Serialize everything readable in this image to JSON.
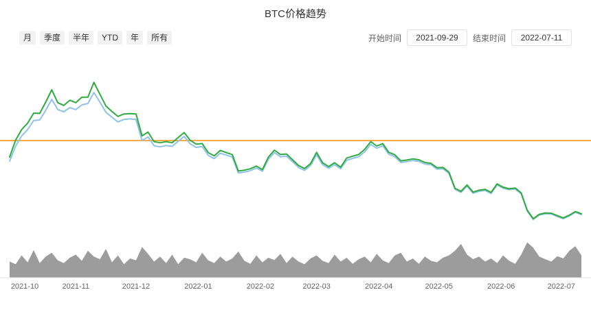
{
  "header": {
    "title": "BTC价格趋势"
  },
  "filters": {
    "items": [
      "月",
      "季度",
      "半年",
      "YTD",
      "年",
      "所有"
    ]
  },
  "date_controls": {
    "start_label": "开始时间",
    "start_value": "2021-09-29",
    "end_label": "结束时间",
    "end_value": "2022-07-11"
  },
  "chart_data": {
    "type": "line",
    "title": "BTC价格趋势",
    "xlabel": "",
    "ylabel": "",
    "grid": false,
    "legend": "none",
    "price_axis_range": [
      15000,
      72000
    ],
    "total_days": 285,
    "dates": [
      "2021-09-29",
      "2021-10-02",
      "2021-10-05",
      "2021-10-08",
      "2021-10-11",
      "2021-10-14",
      "2021-10-17",
      "2021-10-20",
      "2021-10-23",
      "2021-10-26",
      "2021-10-29",
      "2021-11-01",
      "2021-11-04",
      "2021-11-07",
      "2021-11-10",
      "2021-11-13",
      "2021-11-16",
      "2021-11-19",
      "2021-11-22",
      "2021-11-25",
      "2021-11-28",
      "2021-12-01",
      "2021-12-04",
      "2021-12-07",
      "2021-12-10",
      "2021-12-13",
      "2021-12-16",
      "2021-12-19",
      "2021-12-22",
      "2021-12-25",
      "2021-12-28",
      "2021-12-31",
      "2022-01-03",
      "2022-01-06",
      "2022-01-09",
      "2022-01-12",
      "2022-01-15",
      "2022-01-18",
      "2022-01-21",
      "2022-01-24",
      "2022-01-27",
      "2022-01-30",
      "2022-02-02",
      "2022-02-05",
      "2022-02-08",
      "2022-02-11",
      "2022-02-14",
      "2022-02-17",
      "2022-02-20",
      "2022-02-23",
      "2022-02-26",
      "2022-03-01",
      "2022-03-04",
      "2022-03-07",
      "2022-03-10",
      "2022-03-13",
      "2022-03-16",
      "2022-03-19",
      "2022-03-22",
      "2022-03-25",
      "2022-03-28",
      "2022-03-31",
      "2022-04-03",
      "2022-04-06",
      "2022-04-09",
      "2022-04-12",
      "2022-04-15",
      "2022-04-18",
      "2022-04-21",
      "2022-04-24",
      "2022-04-27",
      "2022-04-30",
      "2022-05-03",
      "2022-05-06",
      "2022-05-09",
      "2022-05-12",
      "2022-05-15",
      "2022-05-18",
      "2022-05-21",
      "2022-05-24",
      "2022-05-27",
      "2022-05-30",
      "2022-06-02",
      "2022-06-05",
      "2022-06-08",
      "2022-06-11",
      "2022-06-14",
      "2022-06-17",
      "2022-06-20",
      "2022-06-23",
      "2022-06-26",
      "2022-06-29",
      "2022-07-02",
      "2022-07-05",
      "2022-07-08",
      "2022-07-11"
    ],
    "series": [
      {
        "key": "green-line",
        "color": "#2eaa3f",
        "values": [
          41500,
          47700,
          51500,
          53900,
          57500,
          57400,
          61500,
          66000,
          61300,
          60300,
          62200,
          61300,
          63300,
          63300,
          68700,
          64400,
          60100,
          58100,
          56300,
          57200,
          57300,
          57200,
          49200,
          50600,
          47100,
          46700,
          47100,
          46700,
          48600,
          50400,
          47600,
          46200,
          46400,
          43100,
          41900,
          43900,
          43100,
          42400,
          36400,
          36700,
          37200,
          38200,
          36900,
          41500,
          44000,
          42400,
          42600,
          40500,
          38400,
          37300,
          39100,
          43200,
          39400,
          38000,
          39400,
          37800,
          41100,
          41800,
          42400,
          44300,
          47100,
          45500,
          46400,
          43200,
          42300,
          40100,
          40400,
          40800,
          40500,
          39500,
          39200,
          37600,
          37700,
          36000,
          30100,
          29000,
          31300,
          28700,
          29400,
          29700,
          28600,
          31700,
          30500,
          29900,
          30200,
          28400,
          22100,
          19000,
          20600,
          21100,
          21000,
          20100,
          19300,
          20300,
          21600,
          20800
        ]
      },
      {
        "key": "blue-line",
        "color": "#8fc2e9",
        "values": [
          40000,
          45500,
          49200,
          51500,
          54800,
          55000,
          58500,
          62500,
          58800,
          58000,
          59500,
          58800,
          60500,
          61000,
          65000,
          61500,
          57800,
          56000,
          54300,
          55200,
          55400,
          55200,
          47500,
          48800,
          45600,
          45200,
          45700,
          45400,
          47200,
          49000,
          46300,
          45000,
          45300,
          42100,
          40900,
          42900,
          42200,
          41500,
          35700,
          36000,
          36500,
          37500,
          36300,
          40700,
          43100,
          41600,
          41800,
          39800,
          37700,
          36600,
          38400,
          42300,
          38700,
          37400,
          38700,
          37200,
          40300,
          41000,
          41600,
          43400,
          46100,
          44700,
          45600,
          42500,
          41600,
          39500,
          39800,
          40200,
          39900,
          38900,
          38700,
          37100,
          37200,
          35500,
          29700,
          28600,
          30900,
          28300,
          29000,
          29300,
          28200,
          31300,
          30100,
          29600,
          29800,
          28100,
          21800,
          18700,
          20300,
          20800,
          20700,
          19800,
          19000,
          20000,
          21300,
          20500
        ]
      }
    ],
    "reference_line": {
      "value": 47500,
      "color": "#fb8c00"
    },
    "volume": {
      "color": "#9c9c9c",
      "scale_max": 100,
      "values": [
        42,
        35,
        58,
        40,
        72,
        38,
        55,
        65,
        45,
        38,
        52,
        60,
        44,
        70,
        55,
        48,
        75,
        40,
        58,
        35,
        50,
        45,
        80,
        62,
        42,
        55,
        38,
        60,
        35,
        52,
        48,
        40,
        65,
        45,
        38,
        55,
        42,
        50,
        68,
        44,
        36,
        58,
        40,
        52,
        46,
        62,
        38,
        55,
        42,
        35,
        50,
        58,
        44,
        38,
        60,
        42,
        52,
        36,
        48,
        55,
        40,
        62,
        45,
        38,
        58,
        65,
        42,
        50,
        36,
        55,
        44,
        40,
        52,
        58,
        70,
        88,
        60,
        48,
        55,
        42,
        50,
        38,
        58,
        44,
        36,
        60,
        92,
        78,
        55,
        48,
        42,
        56,
        50,
        70,
        82,
        58
      ]
    },
    "x_axis_ticks": [
      {
        "label": "2021-10",
        "day": 2
      },
      {
        "label": "2021-11",
        "day": 33
      },
      {
        "label": "2021-12",
        "day": 63
      },
      {
        "label": "2022-01",
        "day": 94
      },
      {
        "label": "2022-02",
        "day": 125
      },
      {
        "label": "2022-03",
        "day": 153
      },
      {
        "label": "2022-04",
        "day": 184
      },
      {
        "label": "2022-05",
        "day": 214
      },
      {
        "label": "2022-06",
        "day": 245
      },
      {
        "label": "2022-07",
        "day": 275
      }
    ]
  }
}
